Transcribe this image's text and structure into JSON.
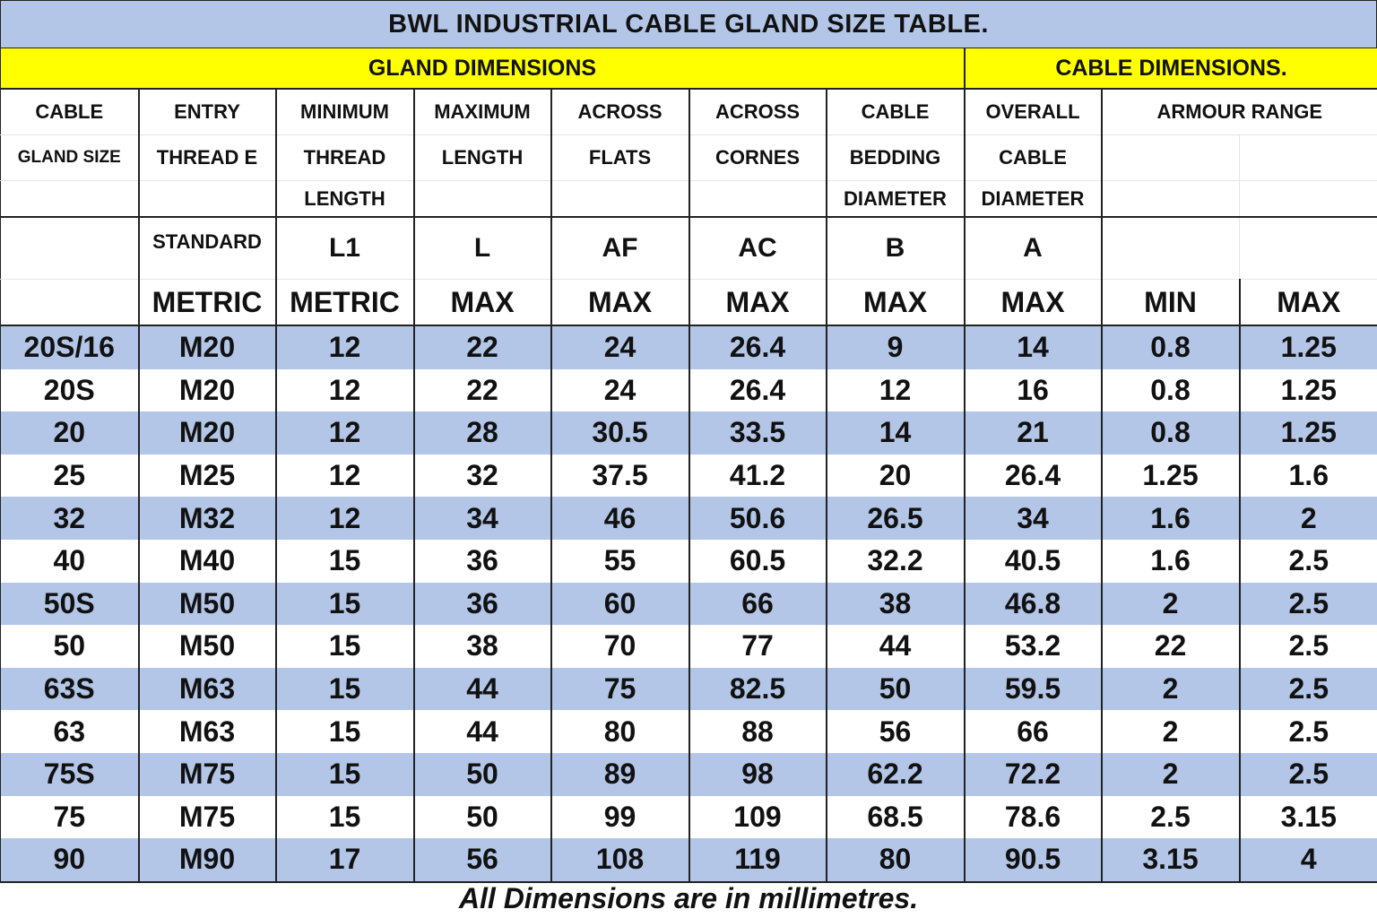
{
  "title": "BWL INDUSTRIAL CABLE GLAND SIZE TABLE.",
  "groups": {
    "gland": "GLAND DIMENSIONS",
    "cable": "CABLE DIMENSIONS."
  },
  "headers": {
    "row1": [
      "CABLE",
      "ENTRY",
      "MINIMUM",
      "MAXIMUM",
      "ACROSS",
      "ACROSS",
      "CABLE",
      "OVERALL",
      "ARMOUR RANGE"
    ],
    "row2": [
      "GLAND SIZE",
      "THREAD E",
      "THREAD",
      "LENGTH",
      "FLATS",
      "CORNES",
      "BEDDING",
      "CABLE"
    ],
    "row3": [
      "LENGTH",
      "DIAMETER",
      "DIAMETER"
    ],
    "row4": [
      "STANDARD",
      "L1",
      "L",
      "AF",
      "AC",
      "B",
      "A"
    ],
    "row5": [
      "METRIC",
      "METRIC",
      "MAX",
      "MAX",
      "MAX",
      "MAX",
      "MAX",
      "MIN",
      "MAX"
    ]
  },
  "rows": [
    [
      "20S/16",
      "M20",
      "12",
      "22",
      "24",
      "26.4",
      "9",
      "14",
      "0.8",
      "1.25"
    ],
    [
      "20S",
      "M20",
      "12",
      "22",
      "24",
      "26.4",
      "12",
      "16",
      "0.8",
      "1.25"
    ],
    [
      "20",
      "M20",
      "12",
      "28",
      "30.5",
      "33.5",
      "14",
      "21",
      "0.8",
      "1.25"
    ],
    [
      "25",
      "M25",
      "12",
      "32",
      "37.5",
      "41.2",
      "20",
      "26.4",
      "1.25",
      "1.6"
    ],
    [
      "32",
      "M32",
      "12",
      "34",
      "46",
      "50.6",
      "26.5",
      "34",
      "1.6",
      "2"
    ],
    [
      "40",
      "M40",
      "15",
      "36",
      "55",
      "60.5",
      "32.2",
      "40.5",
      "1.6",
      "2.5"
    ],
    [
      "50S",
      "M50",
      "15",
      "36",
      "60",
      "66",
      "38",
      "46.8",
      "2",
      "2.5"
    ],
    [
      "50",
      "M50",
      "15",
      "38",
      "70",
      "77",
      "44",
      "53.2",
      "22",
      "2.5"
    ],
    [
      "63S",
      "M63",
      "15",
      "44",
      "75",
      "82.5",
      "50",
      "59.5",
      "2",
      "2.5"
    ],
    [
      "63",
      "M63",
      "15",
      "44",
      "80",
      "88",
      "56",
      "66",
      "2",
      "2.5"
    ],
    [
      "75S",
      "M75",
      "15",
      "50",
      "89",
      "98",
      "62.2",
      "72.2",
      "2",
      "2.5"
    ],
    [
      "75",
      "M75",
      "15",
      "50",
      "99",
      "109",
      "68.5",
      "78.6",
      "2.5",
      "3.15"
    ],
    [
      "90",
      "M90",
      "17",
      "56",
      "108",
      "119",
      "80",
      "90.5",
      "3.15",
      "4"
    ]
  ],
  "footnote": "All Dimensions are in millimetres.",
  "colors": {
    "header_band": "#ffff00",
    "row_shade": "#b3c6e7",
    "title_bg": "#b3c6e7"
  }
}
